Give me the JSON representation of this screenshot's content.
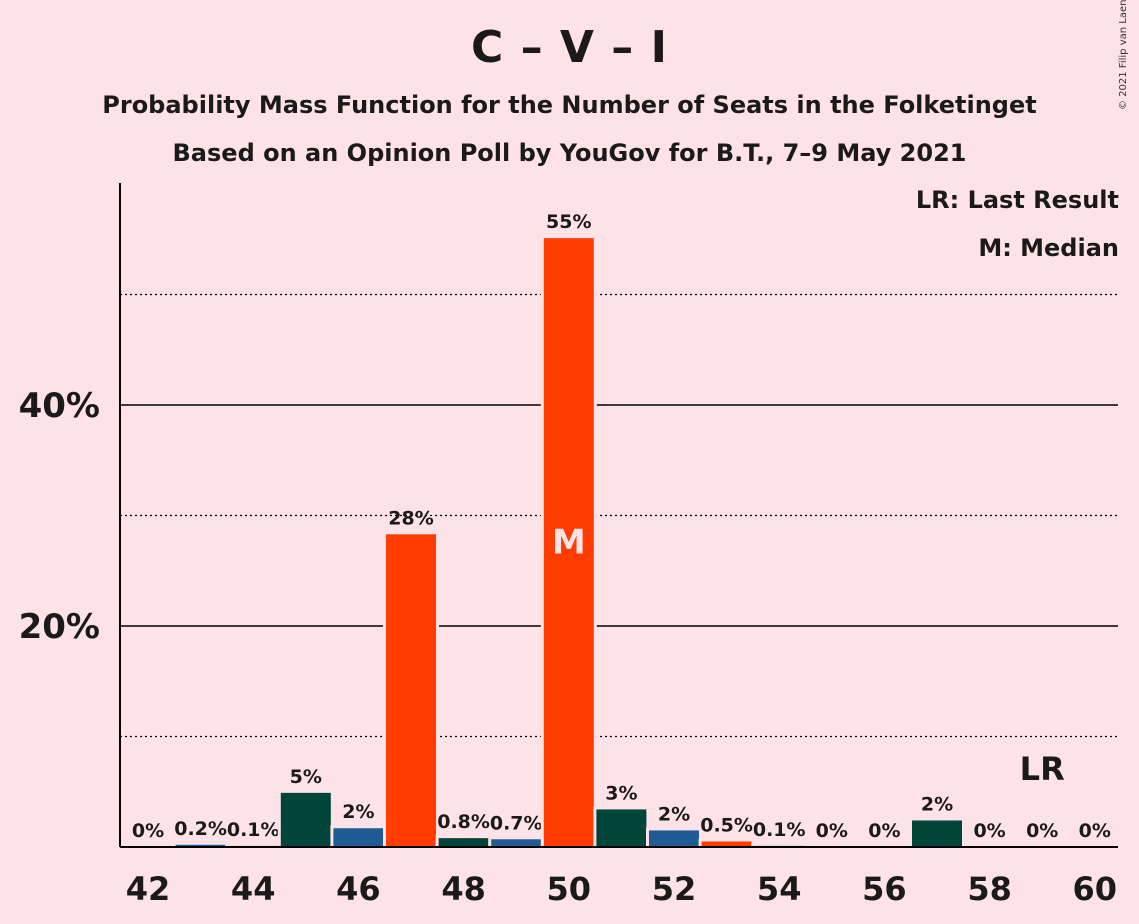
{
  "header": {
    "title": "C – V – I",
    "subtitle1": "Probability Mass Function for the Number of Seats in the Folketinget",
    "subtitle2": "Based on an Opinion Poll by YouGov for B.T., 7–9 May 2021",
    "copyright": "© 2021 Filip van Laenen"
  },
  "legend": {
    "last_result": "LR: Last Result",
    "median": "M: Median"
  },
  "colors": {
    "background": "#FDE3E7",
    "orange": "#FF3C00",
    "teal": "#00453A",
    "blue": "#1F5C96"
  },
  "chart_data": {
    "type": "bar",
    "x": [
      42,
      43,
      44,
      45,
      46,
      47,
      48,
      49,
      50,
      51,
      52,
      53,
      54,
      55,
      56,
      57,
      58,
      59,
      60
    ],
    "values": [
      0,
      0.2,
      0.1,
      4.9,
      1.7,
      28.3,
      0.8,
      0.7,
      55.1,
      3.4,
      1.5,
      0.5,
      0.1,
      0,
      0,
      2.4,
      0,
      0,
      0
    ],
    "labels": [
      "0%",
      "0.2%",
      "0.1%",
      "5%",
      "2%",
      "28%",
      "0.8%",
      "0.7%",
      "55%",
      "3%",
      "2%",
      "0.5%",
      "0.1%",
      "0%",
      "0%",
      "2%",
      "0%",
      "0%",
      "0%"
    ],
    "bar_colors": [
      "teal",
      "blue",
      "orange",
      "teal",
      "blue",
      "orange",
      "teal",
      "blue",
      "orange",
      "teal",
      "blue",
      "orange",
      "teal",
      "blue",
      "orange",
      "teal",
      "blue",
      "orange",
      "teal"
    ],
    "x_ticks": [
      "42",
      "44",
      "46",
      "48",
      "50",
      "52",
      "54",
      "56",
      "58",
      "60"
    ],
    "y_ticks": [
      {
        "value": 20,
        "label": "20%"
      },
      {
        "value": 40,
        "label": "40%"
      }
    ],
    "gridlines_solid": [
      20,
      40
    ],
    "gridlines_dotted": [
      10,
      30,
      50
    ],
    "ylim": [
      0,
      60
    ],
    "median": {
      "x": 50,
      "label": "M"
    },
    "last_result": {
      "x": 59,
      "label": "LR"
    }
  }
}
